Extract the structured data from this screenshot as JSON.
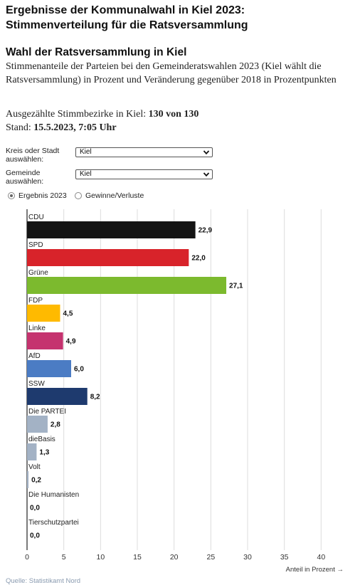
{
  "header": {
    "title_line1": "Ergebnisse der Kommunalwahl in Kiel 2023:",
    "title_line2": "Stimmenverteilung für die Ratsversammlung",
    "subtitle": "Wahl der Ratsversammlung in Kiel",
    "description": "Stimmenanteile der Parteien bei den Gemeinderatswahlen 2023 (Kiel wählt die Ratsversammlung) in Prozent und Veränderung gegenüber 2018 in Prozentpunkten"
  },
  "stats": {
    "districts_label": "Ausgezählte Stimmbezirke in Kiel:",
    "districts_value": "130 von 130",
    "status_label": "Stand:",
    "status_value": "15.5.2023, 7:05 Uhr"
  },
  "form": {
    "region_label_line1": "Kreis oder Stadt",
    "region_label_line2": "auswählen:",
    "region_value": "Kiel",
    "municipality_label_line1": "Gemeinde",
    "municipality_label_line2": "auswählen:",
    "municipality_value": "Kiel"
  },
  "view_toggle": {
    "option_result": "Ergebnis 2023",
    "option_changes": "Gewinne/Verluste",
    "selected": "Ergebnis 2023"
  },
  "chart_data": {
    "type": "bar",
    "orientation": "horizontal",
    "categories": [
      "CDU",
      "SPD",
      "Grüne",
      "FDP",
      "Linke",
      "AfD",
      "SSW",
      "Die PARTEI",
      "dieBasis",
      "Volt",
      "Die Humanisten",
      "Tierschutzpartei"
    ],
    "values": [
      22.9,
      22.0,
      27.1,
      4.5,
      4.9,
      6.0,
      8.2,
      2.8,
      1.3,
      0.2,
      0.0,
      0.0
    ],
    "value_labels": [
      "22,9",
      "22,0",
      "27,1",
      "4,5",
      "4,9",
      "6,0",
      "8,2",
      "2,8",
      "1,3",
      "0,2",
      "0,0",
      "0,0"
    ],
    "colors": [
      "#141414",
      "#d8232a",
      "#7cba2e",
      "#ffba00",
      "#c5336f",
      "#4b7cc4",
      "#1e3a6e",
      "#a3b2c5",
      "#a3b2c5",
      "#a3b2c5",
      "#a3b2c5",
      "#a3b2c5"
    ],
    "xlim": [
      0,
      45
    ],
    "ticks": [
      0,
      5,
      10,
      15,
      20,
      25,
      30,
      35,
      40
    ],
    "xlabel": "Anteil in Prozent →",
    "grid": true
  },
  "footer": {
    "source": "Quelle: Statistikamt Nord"
  },
  "icons": {
    "select_chevron": "chevron-down-icon"
  }
}
